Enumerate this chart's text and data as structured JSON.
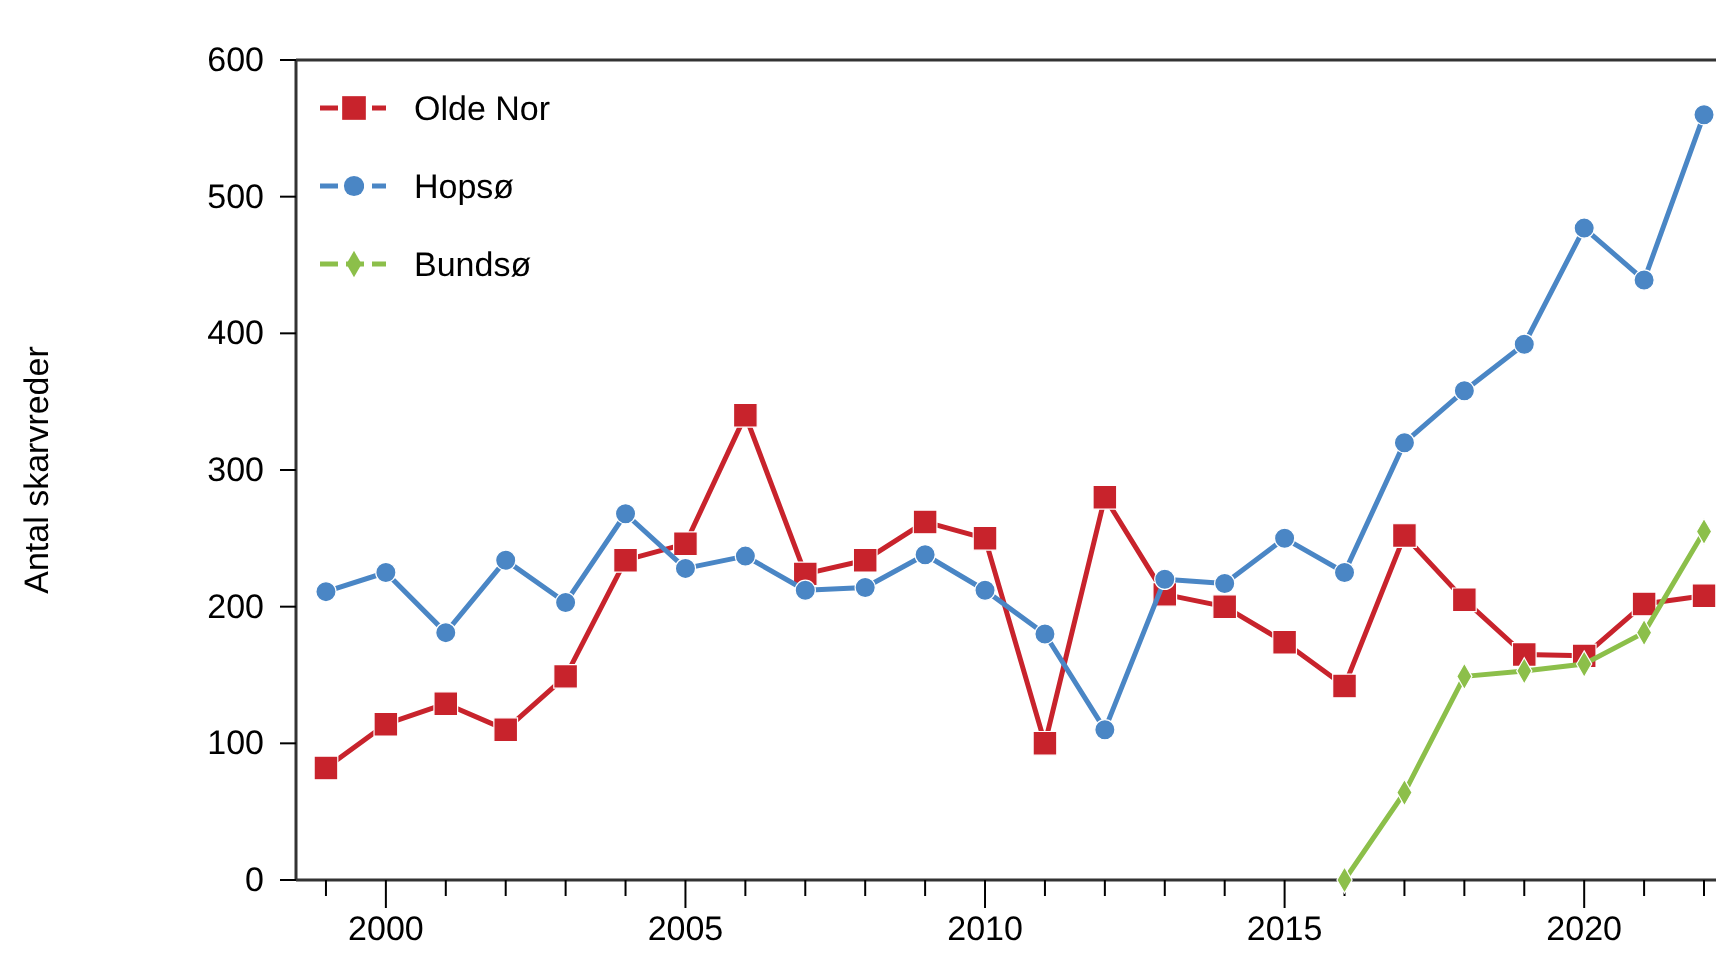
{
  "chart_data": {
    "type": "line",
    "ylabel": "Antal skarvreder",
    "x": [
      1999,
      2000,
      2001,
      2002,
      2003,
      2004,
      2005,
      2006,
      2007,
      2008,
      2009,
      2010,
      2011,
      2012,
      2013,
      2014,
      2015,
      2016,
      2017,
      2018,
      2019,
      2020,
      2021,
      2022
    ],
    "series": [
      {
        "name": "Olde Nor",
        "color": "#c8232c",
        "marker": "square",
        "values": [
          82,
          114,
          129,
          110,
          149,
          234,
          246,
          340,
          224,
          234,
          262,
          250,
          100,
          280,
          209,
          200,
          174,
          142,
          252,
          205,
          165,
          164,
          202,
          208
        ]
      },
      {
        "name": "Hopsø",
        "color": "#4a86c5",
        "marker": "circle",
        "values": [
          211,
          225,
          181,
          234,
          203,
          268,
          228,
          237,
          212,
          214,
          238,
          212,
          180,
          110,
          220,
          217,
          250,
          225,
          320,
          358,
          392,
          477,
          439,
          560
        ]
      },
      {
        "name": "Bundsø",
        "color": "#8cbf4a",
        "marker": "diamond",
        "x": [
          2016,
          2017,
          2018,
          2019,
          2020,
          2021,
          2022
        ],
        "values": [
          0,
          64,
          149,
          153,
          158,
          181,
          255
        ]
      }
    ],
    "xlim": [
      1998.5,
      2022.2
    ],
    "ylim": [
      0,
      600
    ],
    "xticks": [
      {
        "value": 1999,
        "label": null
      },
      2000,
      {
        "value": 2001,
        "label": null
      },
      {
        "value": 2002,
        "label": null
      },
      {
        "value": 2003,
        "label": null
      },
      {
        "value": 2004,
        "label": null
      },
      2005,
      {
        "value": 2006,
        "label": null
      },
      {
        "value": 2007,
        "label": null
      },
      {
        "value": 2008,
        "label": null
      },
      {
        "value": 2009,
        "label": null
      },
      2010,
      {
        "value": 2011,
        "label": null
      },
      {
        "value": 2012,
        "label": null
      },
      {
        "value": 2013,
        "label": null
      },
      {
        "value": 2014,
        "label": null
      },
      2015,
      {
        "value": 2016,
        "label": null
      },
      {
        "value": 2017,
        "label": null
      },
      {
        "value": 2018,
        "label": null
      },
      {
        "value": 2019,
        "label": null
      },
      2020,
      {
        "value": 2021,
        "label": null
      },
      {
        "value": 2022,
        "label": null
      }
    ],
    "yticks": [
      0,
      100,
      200,
      300,
      400,
      500,
      600
    ],
    "legend": "top left",
    "line_style": "solid"
  }
}
